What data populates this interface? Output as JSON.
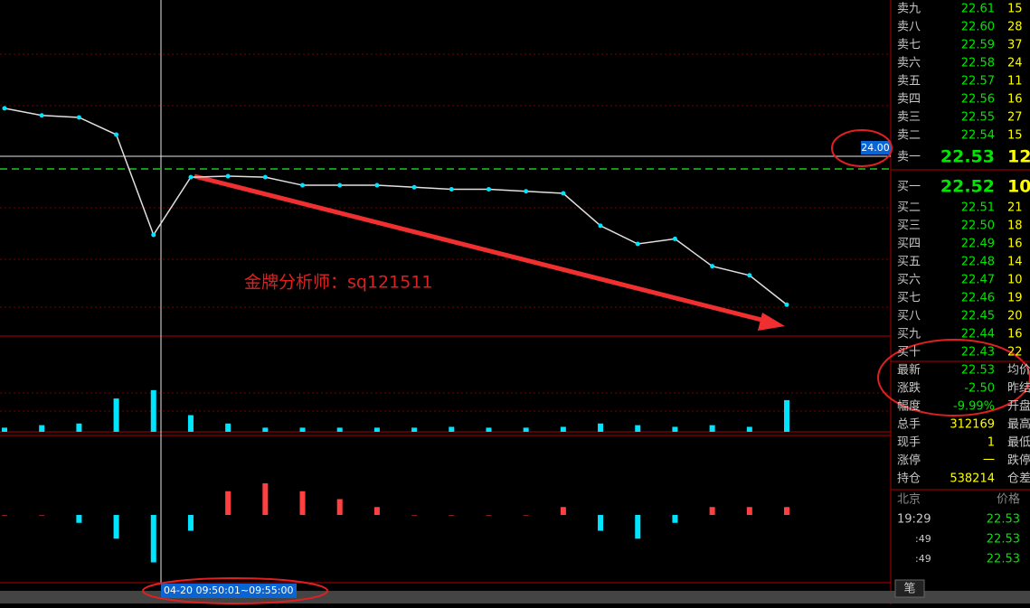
{
  "order_book": {
    "asks": [
      {
        "label": "卖九",
        "price": "22.61",
        "volume": "15"
      },
      {
        "label": "卖八",
        "price": "22.60",
        "volume": "28"
      },
      {
        "label": "卖七",
        "price": "22.59",
        "volume": "37"
      },
      {
        "label": "卖六",
        "price": "22.58",
        "volume": "24"
      },
      {
        "label": "卖五",
        "price": "22.57",
        "volume": "11"
      },
      {
        "label": "卖四",
        "price": "22.56",
        "volume": "16"
      },
      {
        "label": "卖三",
        "price": "22.55",
        "volume": "27"
      },
      {
        "label": "卖二",
        "price": "22.54",
        "volume": "15"
      },
      {
        "label": "卖一",
        "price": "22.53",
        "volume": "12"
      }
    ],
    "bids": [
      {
        "label": "买一",
        "price": "22.52",
        "volume": "10"
      },
      {
        "label": "买二",
        "price": "22.51",
        "volume": "21"
      },
      {
        "label": "买三",
        "price": "22.50",
        "volume": "18"
      },
      {
        "label": "买四",
        "price": "22.49",
        "volume": "16"
      },
      {
        "label": "买五",
        "price": "22.48",
        "volume": "14"
      },
      {
        "label": "买六",
        "price": "22.47",
        "volume": "10"
      },
      {
        "label": "买七",
        "price": "22.46",
        "volume": "19"
      },
      {
        "label": "买八",
        "price": "22.45",
        "volume": "20"
      },
      {
        "label": "买九",
        "price": "22.44",
        "volume": "16"
      },
      {
        "label": "买十",
        "price": "22.43",
        "volume": "22"
      }
    ]
  },
  "stats": [
    {
      "label": "最新",
      "value": "22.53",
      "label2": "均价"
    },
    {
      "label": "涨跌",
      "value": "-2.50",
      "label2": "昨结"
    },
    {
      "label": "幅度",
      "value": "-9.99%",
      "label2": "开盘"
    },
    {
      "label": "总手",
      "value": "312169",
      "label2": "最高"
    },
    {
      "label": "现手",
      "value": "1",
      "label2": "最低"
    },
    {
      "label": "涨停",
      "value": "一",
      "label2": "跌停"
    },
    {
      "label": "持仓",
      "value": "538214",
      "label2": "仓差"
    }
  ],
  "ticks": {
    "header": [
      "北京",
      "价格"
    ],
    "rows": [
      {
        "time": "19:29",
        "price": "22.53"
      },
      {
        "time": ":49",
        "price": "22.53"
      },
      {
        "time": ":49",
        "price": "22.53"
      }
    ]
  },
  "tab": "笔",
  "crosshair": {
    "time": "04-20 09:50:01~09:55:00",
    "price": "24.00"
  },
  "watermark": "金牌分析师：sq121511",
  "chart_data": [
    {
      "type": "line",
      "color": "#e0e0e0",
      "values": [
        24.47,
        24.4,
        24.38,
        24.21,
        23.22,
        23.79,
        23.8,
        23.79,
        23.71,
        23.71,
        23.71,
        23.69,
        23.67,
        23.67,
        23.65,
        23.63,
        23.31,
        23.13,
        23.18,
        22.91,
        22.82,
        22.53
      ],
      "ylim": [
        22.22,
        25.54
      ]
    },
    {
      "type": "bar",
      "color": "#00e5ff",
      "values": [
        5,
        8,
        10,
        40,
        50,
        20,
        10,
        5,
        5,
        5,
        5,
        5,
        6,
        5,
        5,
        6,
        10,
        8,
        6,
        8,
        6,
        38
      ],
      "ylim": [
        0,
        52
      ]
    },
    {
      "type": "bar",
      "color": "#ff4040",
      "values": [
        0,
        0,
        -1,
        -3,
        -6,
        -2,
        3,
        4,
        3,
        2,
        1,
        0,
        0,
        0,
        0,
        1,
        -2,
        -3,
        -1,
        1,
        1,
        1
      ],
      "ylim": [
        -8,
        8
      ]
    }
  ]
}
